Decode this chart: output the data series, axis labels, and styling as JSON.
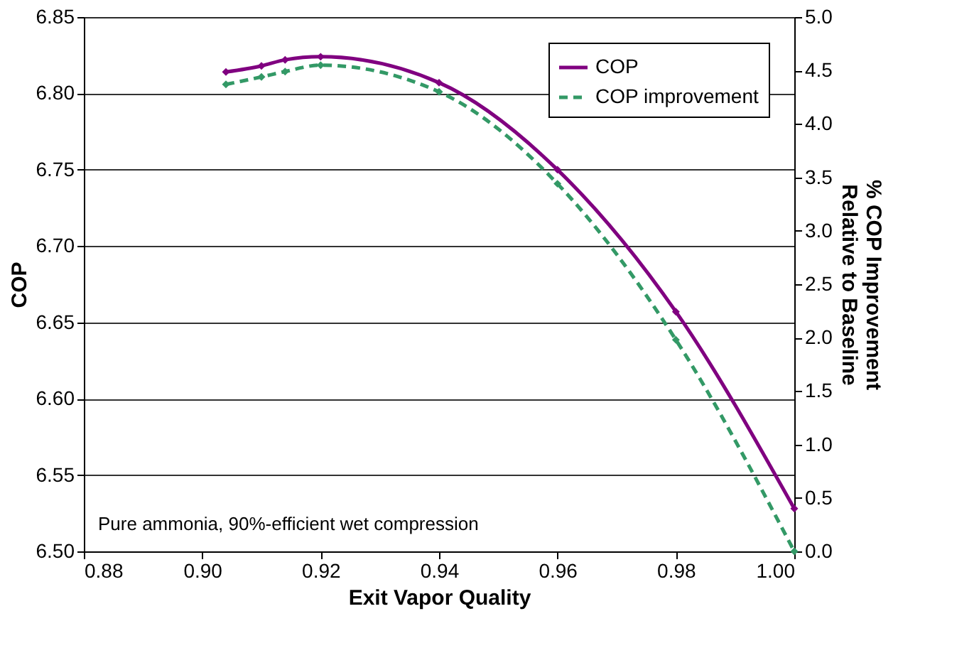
{
  "chart_data": {
    "type": "line",
    "xlabel": "Exit Vapor Quality",
    "ylabel": "COP",
    "y2label": "% COP Improvement\nRelative to Baseline",
    "x": [
      0.904,
      0.91,
      0.914,
      0.92,
      0.94,
      0.96,
      0.98,
      1.0
    ],
    "series": [
      {
        "name": "COP",
        "color": "#800080",
        "line_style": "solid",
        "values": [
          6.814,
          6.818,
          6.822,
          6.824,
          6.807,
          6.75,
          6.657,
          6.528
        ]
      },
      {
        "name": "COP improvement",
        "color": "#339966",
        "line_style": "dashed",
        "axis": "y2",
        "values": [
          4.37,
          4.44,
          4.49,
          4.55,
          4.3,
          3.44,
          1.98,
          0.0
        ]
      }
    ],
    "xlim": [
      0.88,
      1.0
    ],
    "xticks": [
      0.88,
      {
        "value": 0.9,
        "label": "0.90"
      },
      0.92,
      0.94,
      0.96,
      0.98,
      {
        "value": 1.0,
        "label": "1.00"
      }
    ],
    "ylim": [
      6.5,
      6.85
    ],
    "yticks": [
      {
        "value": 6.5,
        "label": "6.50"
      },
      6.55,
      {
        "value": 6.6,
        "label": "6.60"
      },
      6.65,
      {
        "value": 6.7,
        "label": "6.70"
      },
      6.75,
      {
        "value": 6.8,
        "label": "6.80"
      },
      6.85
    ],
    "y2lim": [
      0.0,
      5.0
    ],
    "y2ticks": [
      {
        "value": 0,
        "label": "0.0"
      },
      0.5,
      {
        "value": 1,
        "label": "1.0"
      },
      1.5,
      {
        "value": 2,
        "label": "2.0"
      },
      2.5,
      {
        "value": 3,
        "label": "3.0"
      },
      3.5,
      {
        "value": 4,
        "label": "4.0"
      },
      4.5,
      {
        "value": 5,
        "label": "5.0"
      }
    ],
    "grid": "y",
    "legend": "top right",
    "marker": "diamond",
    "annotations": [
      "Pure ammonia, 90%-efficient wet compression"
    ]
  }
}
